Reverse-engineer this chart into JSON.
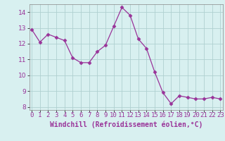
{
  "x": [
    0,
    1,
    2,
    3,
    4,
    5,
    6,
    7,
    8,
    9,
    10,
    11,
    12,
    13,
    14,
    15,
    16,
    17,
    18,
    19,
    20,
    21,
    22,
    23
  ],
  "y": [
    12.9,
    12.1,
    12.6,
    12.4,
    12.2,
    11.1,
    10.8,
    10.8,
    11.5,
    11.9,
    13.1,
    14.3,
    13.8,
    12.3,
    11.7,
    10.2,
    8.9,
    8.2,
    8.7,
    8.6,
    8.5,
    8.5,
    8.6,
    8.5
  ],
  "line_color": "#993399",
  "marker": "D",
  "marker_size": 2.5,
  "bg_color": "#d8f0f0",
  "grid_color": "#b0d0d0",
  "xlabel": "Windchill (Refroidissement éolien,°C)",
  "xlabel_fontsize": 7,
  "tick_fontsize": 6.5,
  "ylim": [
    7.8,
    14.5
  ],
  "yticks": [
    8,
    9,
    10,
    11,
    12,
    13,
    14
  ],
  "xticks": [
    0,
    1,
    2,
    3,
    4,
    5,
    6,
    7,
    8,
    9,
    10,
    11,
    12,
    13,
    14,
    15,
    16,
    17,
    18,
    19,
    20,
    21,
    22,
    23
  ],
  "xtick_labels": [
    "0",
    "1",
    "2",
    "3",
    "4",
    "5",
    "6",
    "7",
    "8",
    "9",
    "10",
    "11",
    "12",
    "13",
    "14",
    "15",
    "16",
    "17",
    "18",
    "19",
    "20",
    "21",
    "22",
    "23"
  ],
  "xlim": [
    -0.3,
    23.3
  ]
}
